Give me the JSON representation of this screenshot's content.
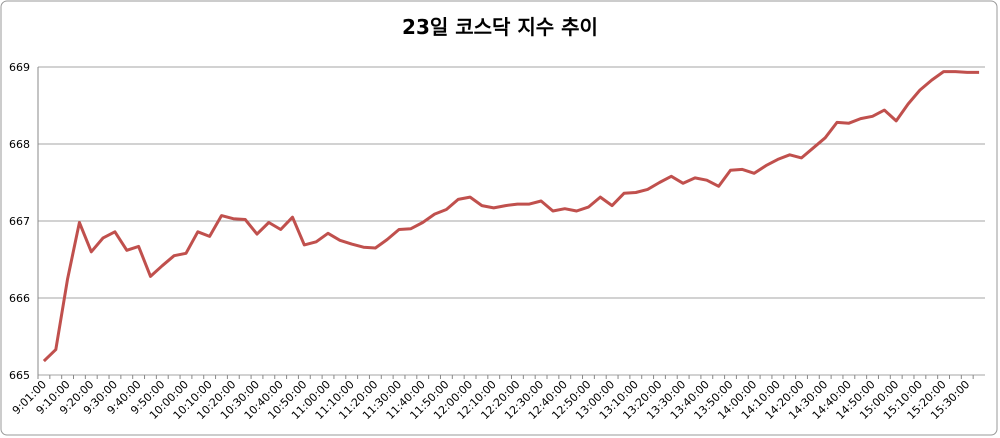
{
  "chart_data": {
    "type": "line",
    "title": "23일 코스닥 지수 추이",
    "categories": [
      "9:01:00",
      null,
      "9:10:00",
      null,
      "9:20:00",
      null,
      "9:30:00",
      null,
      "9:40:00",
      null,
      "9:50:00",
      null,
      "10:00:00",
      null,
      "10:10:00",
      null,
      "10:20:00",
      null,
      "10:30:00",
      null,
      "10:40:00",
      null,
      "10:50:00",
      null,
      "11:00:00",
      null,
      "11:10:00",
      null,
      "11:20:00",
      null,
      "11:30:00",
      null,
      "11:40:00",
      null,
      "11:50:00",
      null,
      "12:00:00",
      null,
      "12:10:00",
      null,
      "12:20:00",
      null,
      "12:30:00",
      null,
      "12:40:00",
      null,
      "12:50:00",
      null,
      "13:00:00",
      null,
      "13:10:00",
      null,
      "13:20:00",
      null,
      "13:30:00",
      null,
      "13:40:00",
      null,
      "13:50:00",
      null,
      "14:00:00",
      null,
      "14:10:00",
      null,
      "14:20:00",
      null,
      "14:30:00",
      null,
      "14:40:00",
      null,
      "14:50:00",
      null,
      "15:00:00",
      null,
      "15:10:00",
      null,
      "15:20:00",
      null,
      "15:30:00",
      null
    ],
    "values": [
      665.18,
      665.33,
      666.25,
      666.98,
      666.6,
      666.78,
      666.86,
      666.62,
      666.67,
      666.28,
      666.42,
      666.55,
      666.58,
      666.86,
      666.8,
      667.07,
      667.03,
      667.02,
      666.83,
      666.98,
      666.89,
      667.05,
      666.69,
      666.73,
      666.84,
      666.75,
      666.7,
      666.66,
      666.65,
      666.76,
      666.89,
      666.9,
      666.98,
      667.09,
      667.15,
      667.28,
      667.31,
      667.2,
      667.17,
      667.2,
      667.22,
      667.22,
      667.26,
      667.13,
      667.16,
      667.13,
      667.18,
      667.31,
      667.2,
      667.36,
      667.37,
      667.41,
      667.5,
      667.58,
      667.49,
      667.56,
      667.53,
      667.45,
      667.66,
      667.67,
      667.62,
      667.72,
      667.8,
      667.86,
      667.82,
      667.95,
      668.08,
      668.28,
      668.27,
      668.33,
      668.36,
      668.44,
      668.3,
      668.52,
      668.7,
      668.83,
      668.94,
      668.94,
      668.93,
      668.93
    ],
    "color": "#c0504d",
    "ylim": [
      665,
      669
    ],
    "yticks": [
      665,
      666,
      667,
      668,
      669
    ],
    "grid": true
  }
}
